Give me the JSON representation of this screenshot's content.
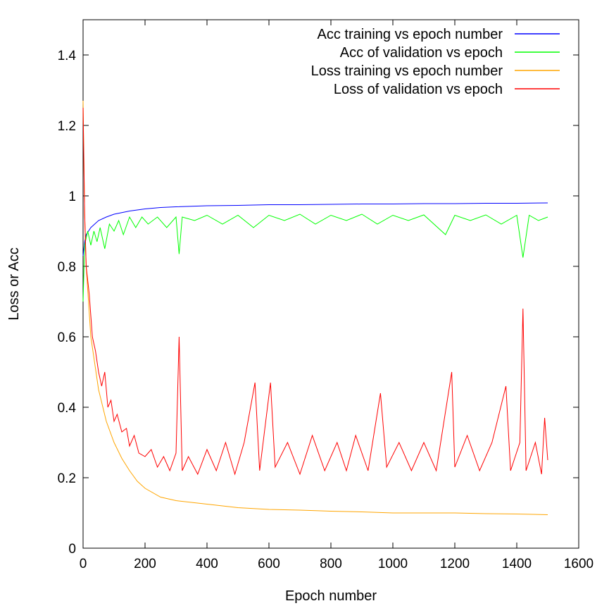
{
  "chart_data": {
    "type": "line",
    "title": "",
    "xlabel": "Epoch number",
    "ylabel": "Loss or Acc",
    "xlim": [
      0,
      1600
    ],
    "ylim": [
      0,
      1.5
    ],
    "xticks": [
      0,
      200,
      400,
      600,
      800,
      1000,
      1200,
      1400,
      1600
    ],
    "yticks": [
      0,
      0.2,
      0.4,
      0.6,
      0.8,
      1,
      1.2,
      1.4
    ],
    "xtick_labels": [
      "0",
      "200",
      "400",
      "600",
      "800",
      "1000",
      "1200",
      "1400",
      "1600"
    ],
    "ytick_labels": [
      "0",
      "0.2",
      "0.4",
      "0.6",
      "0.8",
      "1",
      "1.2",
      "1.4"
    ],
    "grid": false,
    "legend_position": "top-right",
    "series": [
      {
        "name": "Acc training vs epoch number",
        "color": "#0000ff",
        "points": [
          [
            0,
            0.83
          ],
          [
            5,
            0.87
          ],
          [
            10,
            0.89
          ],
          [
            25,
            0.91
          ],
          [
            50,
            0.93
          ],
          [
            75,
            0.94
          ],
          [
            100,
            0.948
          ],
          [
            150,
            0.957
          ],
          [
            200,
            0.963
          ],
          [
            250,
            0.967
          ],
          [
            300,
            0.969
          ],
          [
            400,
            0.972
          ],
          [
            500,
            0.973
          ],
          [
            600,
            0.975
          ],
          [
            700,
            0.975
          ],
          [
            800,
            0.976
          ],
          [
            900,
            0.977
          ],
          [
            1000,
            0.977
          ],
          [
            1100,
            0.978
          ],
          [
            1200,
            0.978
          ],
          [
            1300,
            0.979
          ],
          [
            1400,
            0.979
          ],
          [
            1500,
            0.98
          ]
        ]
      },
      {
        "name": "Acc of validation vs epoch",
        "color": "#00ff00",
        "points": [
          [
            0,
            0.7
          ],
          [
            5,
            0.86
          ],
          [
            15,
            0.9
          ],
          [
            25,
            0.86
          ],
          [
            35,
            0.9
          ],
          [
            45,
            0.87
          ],
          [
            55,
            0.91
          ],
          [
            70,
            0.85
          ],
          [
            85,
            0.92
          ],
          [
            100,
            0.9
          ],
          [
            115,
            0.93
          ],
          [
            130,
            0.89
          ],
          [
            150,
            0.94
          ],
          [
            170,
            0.91
          ],
          [
            190,
            0.94
          ],
          [
            210,
            0.92
          ],
          [
            240,
            0.94
          ],
          [
            270,
            0.91
          ],
          [
            300,
            0.94
          ],
          [
            310,
            0.835
          ],
          [
            320,
            0.94
          ],
          [
            360,
            0.93
          ],
          [
            400,
            0.945
          ],
          [
            450,
            0.92
          ],
          [
            500,
            0.945
          ],
          [
            550,
            0.91
          ],
          [
            600,
            0.945
          ],
          [
            650,
            0.93
          ],
          [
            700,
            0.948
          ],
          [
            750,
            0.92
          ],
          [
            800,
            0.945
          ],
          [
            850,
            0.93
          ],
          [
            900,
            0.948
          ],
          [
            950,
            0.92
          ],
          [
            1000,
            0.945
          ],
          [
            1050,
            0.93
          ],
          [
            1100,
            0.946
          ],
          [
            1170,
            0.89
          ],
          [
            1200,
            0.945
          ],
          [
            1250,
            0.93
          ],
          [
            1300,
            0.946
          ],
          [
            1350,
            0.92
          ],
          [
            1400,
            0.945
          ],
          [
            1420,
            0.825
          ],
          [
            1440,
            0.945
          ],
          [
            1470,
            0.93
          ],
          [
            1500,
            0.94
          ]
        ]
      },
      {
        "name": "Loss training vs epoch number",
        "color": "#ffa500",
        "points": [
          [
            0,
            1.27
          ],
          [
            5,
            0.95
          ],
          [
            10,
            0.8
          ],
          [
            25,
            0.6
          ],
          [
            50,
            0.45
          ],
          [
            75,
            0.36
          ],
          [
            100,
            0.3
          ],
          [
            125,
            0.255
          ],
          [
            150,
            0.22
          ],
          [
            175,
            0.19
          ],
          [
            200,
            0.17
          ],
          [
            250,
            0.145
          ],
          [
            300,
            0.135
          ],
          [
            400,
            0.125
          ],
          [
            500,
            0.115
          ],
          [
            600,
            0.11
          ],
          [
            700,
            0.108
          ],
          [
            800,
            0.105
          ],
          [
            900,
            0.103
          ],
          [
            1000,
            0.1
          ],
          [
            1100,
            0.1
          ],
          [
            1200,
            0.1
          ],
          [
            1300,
            0.098
          ],
          [
            1400,
            0.097
          ],
          [
            1500,
            0.095
          ]
        ]
      },
      {
        "name": "Loss of validation vs epoch",
        "color": "#ff0000",
        "points": [
          [
            0,
            1.25
          ],
          [
            5,
            0.95
          ],
          [
            10,
            0.8
          ],
          [
            20,
            0.72
          ],
          [
            30,
            0.6
          ],
          [
            40,
            0.56
          ],
          [
            50,
            0.5
          ],
          [
            60,
            0.46
          ],
          [
            70,
            0.5
          ],
          [
            80,
            0.4
          ],
          [
            90,
            0.42
          ],
          [
            100,
            0.36
          ],
          [
            110,
            0.38
          ],
          [
            125,
            0.33
          ],
          [
            140,
            0.34
          ],
          [
            150,
            0.29
          ],
          [
            165,
            0.32
          ],
          [
            180,
            0.27
          ],
          [
            200,
            0.26
          ],
          [
            220,
            0.28
          ],
          [
            240,
            0.23
          ],
          [
            260,
            0.26
          ],
          [
            280,
            0.22
          ],
          [
            300,
            0.27
          ],
          [
            310,
            0.6
          ],
          [
            320,
            0.22
          ],
          [
            340,
            0.26
          ],
          [
            370,
            0.21
          ],
          [
            400,
            0.28
          ],
          [
            430,
            0.22
          ],
          [
            460,
            0.3
          ],
          [
            490,
            0.21
          ],
          [
            520,
            0.3
          ],
          [
            555,
            0.47
          ],
          [
            570,
            0.22
          ],
          [
            605,
            0.47
          ],
          [
            620,
            0.23
          ],
          [
            660,
            0.3
          ],
          [
            700,
            0.21
          ],
          [
            740,
            0.32
          ],
          [
            780,
            0.22
          ],
          [
            820,
            0.3
          ],
          [
            850,
            0.22
          ],
          [
            880,
            0.32
          ],
          [
            920,
            0.22
          ],
          [
            960,
            0.44
          ],
          [
            980,
            0.23
          ],
          [
            1020,
            0.3
          ],
          [
            1060,
            0.22
          ],
          [
            1100,
            0.3
          ],
          [
            1140,
            0.22
          ],
          [
            1190,
            0.5
          ],
          [
            1200,
            0.23
          ],
          [
            1240,
            0.32
          ],
          [
            1280,
            0.22
          ],
          [
            1320,
            0.3
          ],
          [
            1365,
            0.46
          ],
          [
            1380,
            0.22
          ],
          [
            1410,
            0.3
          ],
          [
            1420,
            0.68
          ],
          [
            1430,
            0.22
          ],
          [
            1460,
            0.3
          ],
          [
            1480,
            0.21
          ],
          [
            1490,
            0.37
          ],
          [
            1500,
            0.25
          ]
        ]
      }
    ]
  }
}
